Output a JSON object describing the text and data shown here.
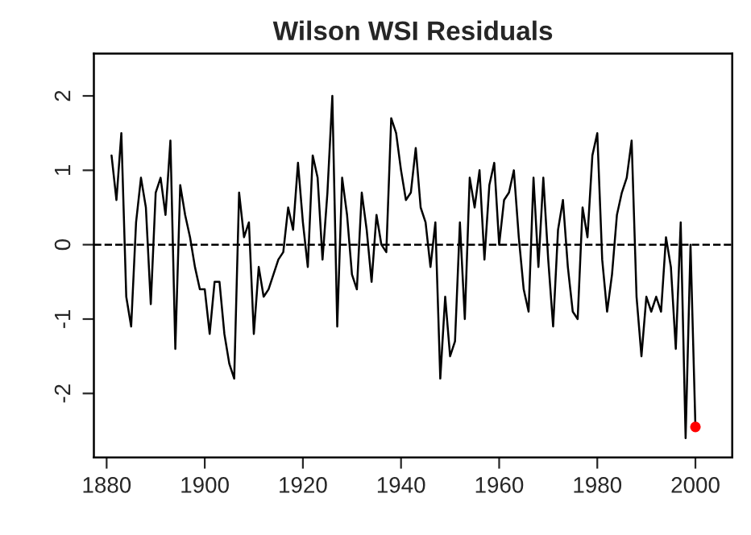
{
  "chart_data": {
    "type": "line",
    "title": "Wilson WSI Residuals",
    "x": [
      1881,
      1882,
      1883,
      1884,
      1885,
      1886,
      1887,
      1888,
      1889,
      1890,
      1891,
      1892,
      1893,
      1894,
      1895,
      1896,
      1897,
      1898,
      1899,
      1900,
      1901,
      1902,
      1903,
      1904,
      1905,
      1906,
      1907,
      1908,
      1909,
      1910,
      1911,
      1912,
      1913,
      1914,
      1915,
      1916,
      1917,
      1918,
      1919,
      1920,
      1921,
      1922,
      1923,
      1924,
      1925,
      1926,
      1927,
      1928,
      1929,
      1930,
      1931,
      1932,
      1933,
      1934,
      1935,
      1936,
      1937,
      1938,
      1939,
      1940,
      1941,
      1942,
      1943,
      1944,
      1945,
      1946,
      1947,
      1948,
      1949,
      1950,
      1951,
      1952,
      1953,
      1954,
      1955,
      1956,
      1957,
      1958,
      1959,
      1960,
      1961,
      1962,
      1963,
      1964,
      1965,
      1966,
      1967,
      1968,
      1969,
      1970,
      1971,
      1972,
      1973,
      1974,
      1975,
      1976,
      1977,
      1978,
      1979,
      1980,
      1981,
      1982,
      1983,
      1984,
      1985,
      1986,
      1987,
      1988,
      1989,
      1990,
      1991,
      1992,
      1993,
      1994,
      1995,
      1996,
      1997,
      1998,
      1999,
      2000
    ],
    "series": [
      {
        "color": "#000000",
        "values": [
          1.2,
          0.6,
          1.5,
          -0.7,
          -1.1,
          0.3,
          0.9,
          0.5,
          -0.8,
          0.7,
          0.9,
          0.4,
          1.4,
          -1.4,
          0.8,
          0.4,
          0.1,
          -0.3,
          -0.6,
          -0.6,
          -1.2,
          -0.5,
          -0.5,
          -1.2,
          -1.6,
          -1.8,
          0.7,
          0.1,
          0.3,
          -1.2,
          -0.3,
          -0.7,
          -0.6,
          -0.4,
          -0.2,
          -0.1,
          0.5,
          0.2,
          1.1,
          0.3,
          -0.3,
          1.2,
          0.9,
          -0.2,
          0.7,
          2.0,
          -1.1,
          0.9,
          0.4,
          -0.4,
          -0.6,
          0.7,
          0.2,
          -0.5,
          0.4,
          0.0,
          -0.1,
          1.7,
          1.5,
          1.0,
          0.6,
          0.7,
          1.3,
          0.5,
          0.3,
          -0.3,
          0.3,
          -1.8,
          -0.7,
          -1.5,
          -1.3,
          0.3,
          -1.0,
          0.9,
          0.5,
          1.0,
          -0.2,
          0.8,
          1.1,
          0.0,
          0.6,
          0.7,
          1.0,
          0.1,
          -0.6,
          -0.9,
          0.9,
          -0.3,
          0.9,
          -0.2,
          -1.1,
          0.2,
          0.6,
          -0.3,
          -0.9,
          -1.0,
          0.5,
          0.1,
          1.2,
          1.5,
          -0.2,
          -0.9,
          -0.4,
          0.4,
          0.7,
          0.9,
          1.4,
          -0.7,
          -1.5,
          -0.7,
          -0.9,
          -0.7,
          -0.9,
          0.1,
          -0.3,
          -1.4,
          0.3,
          -2.6,
          0.0,
          -2.45
        ]
      },
      {
        "type": "scatter",
        "color": "#ff0000",
        "x": [
          2000
        ],
        "values": [
          -2.45
        ],
        "marker": "circle"
      }
    ],
    "xlim": [
      1877.4,
      2007.5
    ],
    "xticks": [
      1880,
      1900,
      1920,
      1940,
      1960,
      1980,
      2000
    ],
    "ylim": [
      -2.86,
      2.57
    ],
    "yticks": [
      -2,
      -1,
      0,
      1,
      2
    ],
    "ref_lines": [
      {
        "axis": "y",
        "value": 0,
        "line_style": "dashed",
        "color": "#000000"
      }
    ],
    "grid": false,
    "legend": false
  }
}
